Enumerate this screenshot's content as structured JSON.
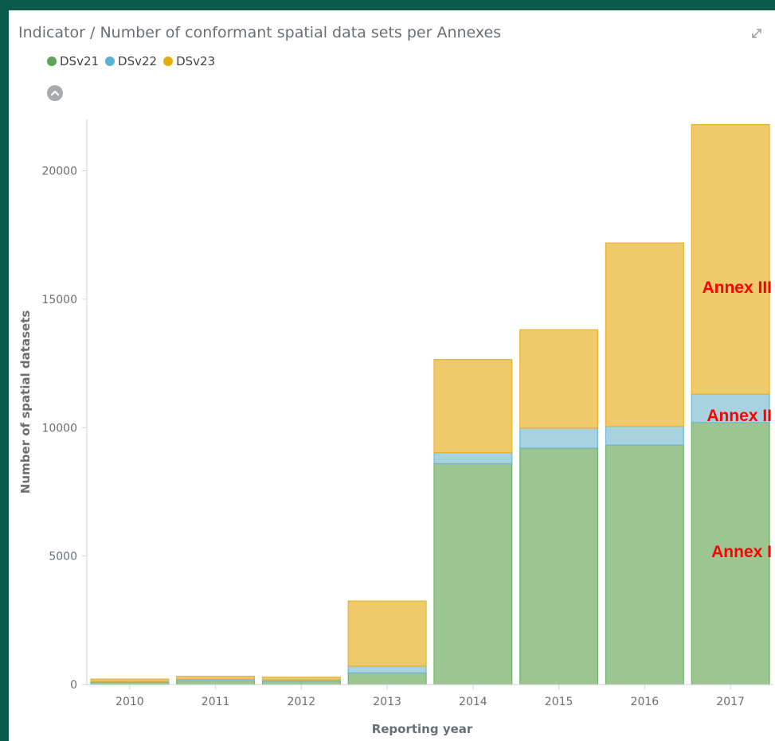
{
  "panel": {
    "title": "Indicator / Number of conformant spatial data sets per Annexes"
  },
  "icons": {
    "expand": "expand-icon",
    "collapse": "chevron-up-icon"
  },
  "legend": {
    "items": [
      {
        "label": "DSv21",
        "color": "#5ea25c"
      },
      {
        "label": "DSv22",
        "color": "#58b2d0"
      },
      {
        "label": "DSv23",
        "color": "#e6ad0f"
      }
    ]
  },
  "chart_data": {
    "type": "bar",
    "stacked": true,
    "xlabel": "Reporting year",
    "ylabel": "Number of spatial datasets",
    "categories": [
      "2010",
      "2011",
      "2012",
      "2013",
      "2014",
      "2015",
      "2016",
      "2017"
    ],
    "series": [
      {
        "name": "DSv21",
        "values": [
          80,
          150,
          130,
          450,
          8600,
          9200,
          9320,
          10200
        ],
        "fill": "#9dc592",
        "stroke": "#6fb06a"
      },
      {
        "name": "DSv22",
        "values": [
          40,
          60,
          55,
          270,
          430,
          780,
          730,
          1100
        ],
        "fill": "#a8d2df",
        "stroke": "#6db7d2"
      },
      {
        "name": "DSv23",
        "values": [
          90,
          110,
          100,
          2530,
          3620,
          3830,
          7140,
          10500
        ],
        "fill": "#efca6a",
        "stroke": "#e6b22a"
      }
    ],
    "ylim": [
      0,
      22000
    ],
    "yticks": [
      0,
      5000,
      10000,
      15000,
      20000
    ],
    "grid": false,
    "legend_position": "top-left",
    "annotations": [
      {
        "text": "Annex III",
        "category": "2017",
        "y": 15500,
        "color": "#ff0000"
      },
      {
        "text": "Annex II",
        "category": "2017",
        "y": 10500,
        "color": "#ff0000"
      },
      {
        "text": "Annex I",
        "category": "2017",
        "y": 5200,
        "color": "#ff0000"
      }
    ]
  }
}
